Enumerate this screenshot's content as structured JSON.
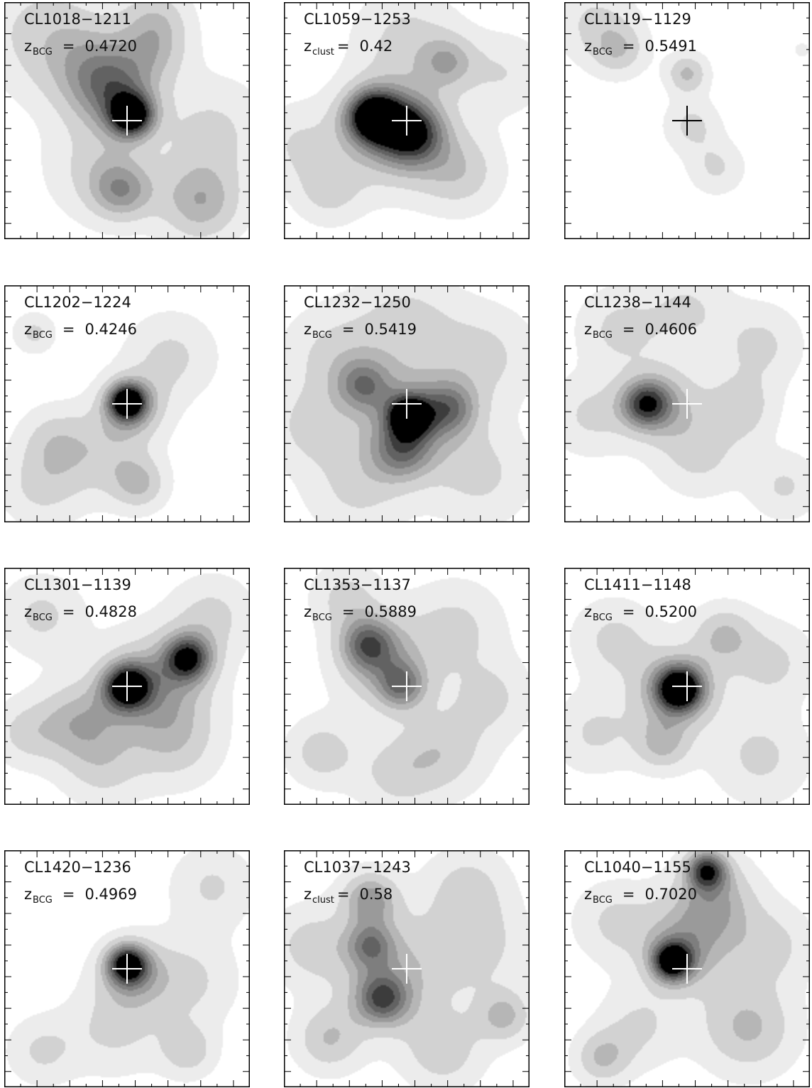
{
  "chart_data": [
    {
      "type": "contour",
      "title": "CL1018−1211",
      "z_label": "z",
      "z_sub": "BCG",
      "z_value": "0.4720",
      "marker_color": "#ffffff",
      "marker": [
        0.5,
        0.5
      ],
      "blobs": [
        {
          "x": 0.52,
          "y": 0.48,
          "s": 0.065,
          "a": 1.0
        },
        {
          "x": 0.45,
          "y": 0.37,
          "s": 0.12,
          "a": 0.55
        },
        {
          "x": 0.35,
          "y": 0.28,
          "s": 0.15,
          "a": 0.35
        },
        {
          "x": 0.15,
          "y": 0.12,
          "s": 0.18,
          "a": 0.3
        },
        {
          "x": 0.62,
          "y": 0.2,
          "s": 0.1,
          "a": 0.3
        },
        {
          "x": 0.62,
          "y": 0.06,
          "s": 0.1,
          "a": 0.3
        },
        {
          "x": 0.85,
          "y": 0.55,
          "s": 0.16,
          "a": 0.3
        },
        {
          "x": 0.48,
          "y": 0.8,
          "s": 0.09,
          "a": 0.5
        },
        {
          "x": 0.8,
          "y": 0.85,
          "s": 0.12,
          "a": 0.5
        },
        {
          "x": 0.38,
          "y": 0.7,
          "s": 0.15,
          "a": 0.3
        }
      ]
    },
    {
      "type": "contour",
      "title": "CL1059−1253",
      "z_label": "z",
      "z_sub": "clust",
      "z_value": "0.42",
      "marker_color": "#ffffff",
      "marker": [
        0.5,
        0.5
      ],
      "blobs": [
        {
          "x": 0.36,
          "y": 0.48,
          "s": 0.08,
          "a": 1.0
        },
        {
          "x": 0.52,
          "y": 0.55,
          "s": 0.09,
          "a": 0.7
        },
        {
          "x": 0.45,
          "y": 0.55,
          "s": 0.16,
          "a": 0.6
        },
        {
          "x": 0.72,
          "y": 0.72,
          "s": 0.12,
          "a": 0.35
        },
        {
          "x": 0.67,
          "y": 0.25,
          "s": 0.08,
          "a": 0.4
        },
        {
          "x": 0.18,
          "y": 0.8,
          "s": 0.1,
          "a": 0.3
        },
        {
          "x": 0.5,
          "y": 0.15,
          "s": 0.15,
          "a": 0.3
        },
        {
          "x": 0.9,
          "y": 0.3,
          "s": 0.12,
          "a": 0.25
        },
        {
          "x": 0.05,
          "y": 0.6,
          "s": 0.12,
          "a": 0.25
        }
      ]
    },
    {
      "type": "contour",
      "title": "CL1119−1129",
      "z_label": "z",
      "z_sub": "BCG",
      "z_value": "0.5491",
      "marker_color": "#000000",
      "marker": [
        0.5,
        0.5
      ],
      "blobs": [
        {
          "x": 0.5,
          "y": 0.3,
          "s": 0.06,
          "a": 0.45
        },
        {
          "x": 0.52,
          "y": 0.52,
          "s": 0.08,
          "a": 0.3
        },
        {
          "x": 0.22,
          "y": 0.2,
          "s": 0.08,
          "a": 0.35
        },
        {
          "x": 0.12,
          "y": 0.08,
          "s": 0.12,
          "a": 0.28
        },
        {
          "x": 0.62,
          "y": 0.7,
          "s": 0.08,
          "a": 0.28
        },
        {
          "x": 0.97,
          "y": 0.2,
          "s": 0.02,
          "a": 0.25
        }
      ]
    },
    {
      "type": "contour",
      "title": "CL1202−1224",
      "z_label": "z",
      "z_sub": "BCG",
      "z_value": "0.4246",
      "marker_color": "#ffffff",
      "marker": [
        0.5,
        0.5
      ],
      "blobs": [
        {
          "x": 0.5,
          "y": 0.49,
          "s": 0.055,
          "a": 1.0
        },
        {
          "x": 0.52,
          "y": 0.52,
          "s": 0.1,
          "a": 0.45
        },
        {
          "x": 0.4,
          "y": 0.72,
          "s": 0.13,
          "a": 0.3
        },
        {
          "x": 0.55,
          "y": 0.84,
          "s": 0.08,
          "a": 0.4
        },
        {
          "x": 0.68,
          "y": 0.3,
          "s": 0.13,
          "a": 0.3
        },
        {
          "x": 0.15,
          "y": 0.85,
          "s": 0.12,
          "a": 0.3
        },
        {
          "x": 0.12,
          "y": 0.2,
          "s": 0.06,
          "a": 0.3
        },
        {
          "x": 0.2,
          "y": 0.65,
          "s": 0.1,
          "a": 0.28
        }
      ]
    },
    {
      "type": "contour",
      "title": "CL1232−1250",
      "z_label": "z",
      "z_sub": "BCG",
      "z_value": "0.5419",
      "marker_color": "#ffffff",
      "marker": [
        0.5,
        0.5
      ],
      "blobs": [
        {
          "x": 0.51,
          "y": 0.55,
          "s": 0.06,
          "a": 0.9
        },
        {
          "x": 0.52,
          "y": 0.55,
          "s": 0.15,
          "a": 0.5
        },
        {
          "x": 0.32,
          "y": 0.42,
          "s": 0.08,
          "a": 0.5
        },
        {
          "x": 0.68,
          "y": 0.52,
          "s": 0.08,
          "a": 0.5
        },
        {
          "x": 0.48,
          "y": 0.7,
          "s": 0.09,
          "a": 0.5
        },
        {
          "x": 0.2,
          "y": 0.3,
          "s": 0.15,
          "a": 0.3
        },
        {
          "x": 0.82,
          "y": 0.3,
          "s": 0.15,
          "a": 0.3
        },
        {
          "x": 0.3,
          "y": 0.85,
          "s": 0.15,
          "a": 0.3
        },
        {
          "x": 0.8,
          "y": 0.8,
          "s": 0.15,
          "a": 0.3
        },
        {
          "x": 0.5,
          "y": 0.15,
          "s": 0.15,
          "a": 0.3
        },
        {
          "x": 0.1,
          "y": 0.6,
          "s": 0.12,
          "a": 0.28
        }
      ]
    },
    {
      "type": "contour",
      "title": "CL1238−1144",
      "z_label": "z",
      "z_sub": "BCG",
      "z_value": "0.4606",
      "marker_color": "#ffffff",
      "marker": [
        0.5,
        0.5
      ],
      "blobs": [
        {
          "x": 0.33,
          "y": 0.5,
          "s": 0.07,
          "a": 0.7
        },
        {
          "x": 0.4,
          "y": 0.5,
          "s": 0.12,
          "a": 0.45
        },
        {
          "x": 0.72,
          "y": 0.52,
          "s": 0.1,
          "a": 0.35
        },
        {
          "x": 0.22,
          "y": 0.18,
          "s": 0.12,
          "a": 0.3
        },
        {
          "x": 0.8,
          "y": 0.25,
          "s": 0.12,
          "a": 0.3
        },
        {
          "x": 0.55,
          "y": 0.72,
          "s": 0.12,
          "a": 0.3
        },
        {
          "x": 0.9,
          "y": 0.85,
          "s": 0.1,
          "a": 0.28
        },
        {
          "x": 0.1,
          "y": 0.55,
          "s": 0.12,
          "a": 0.28
        },
        {
          "x": 0.5,
          "y": 0.1,
          "s": 0.12,
          "a": 0.28
        }
      ]
    },
    {
      "type": "contour",
      "title": "CL1301−1139",
      "z_label": "z",
      "z_sub": "BCG",
      "z_value": "0.4828",
      "marker_color": "#ffffff",
      "marker": [
        0.5,
        0.5
      ],
      "blobs": [
        {
          "x": 0.5,
          "y": 0.5,
          "s": 0.07,
          "a": 0.95
        },
        {
          "x": 0.75,
          "y": 0.38,
          "s": 0.07,
          "a": 0.85
        },
        {
          "x": 0.62,
          "y": 0.5,
          "s": 0.16,
          "a": 0.55
        },
        {
          "x": 0.3,
          "y": 0.65,
          "s": 0.12,
          "a": 0.45
        },
        {
          "x": 0.15,
          "y": 0.2,
          "s": 0.12,
          "a": 0.3
        },
        {
          "x": 0.7,
          "y": 0.75,
          "s": 0.13,
          "a": 0.3
        },
        {
          "x": 0.85,
          "y": 0.2,
          "s": 0.12,
          "a": 0.3
        },
        {
          "x": 0.4,
          "y": 0.85,
          "s": 0.12,
          "a": 0.28
        },
        {
          "x": 0.08,
          "y": 0.7,
          "s": 0.1,
          "a": 0.28
        }
      ]
    },
    {
      "type": "contour",
      "title": "CL1353−1137",
      "z_label": "z",
      "z_sub": "BCG",
      "z_value": "0.5889",
      "marker_color": "#ffffff",
      "marker": [
        0.5,
        0.5
      ],
      "blobs": [
        {
          "x": 0.34,
          "y": 0.32,
          "s": 0.08,
          "a": 0.6
        },
        {
          "x": 0.48,
          "y": 0.5,
          "s": 0.07,
          "a": 0.55
        },
        {
          "x": 0.4,
          "y": 0.4,
          "s": 0.14,
          "a": 0.45
        },
        {
          "x": 0.15,
          "y": 0.78,
          "s": 0.1,
          "a": 0.35
        },
        {
          "x": 0.65,
          "y": 0.78,
          "s": 0.13,
          "a": 0.35
        },
        {
          "x": 0.7,
          "y": 0.25,
          "s": 0.14,
          "a": 0.3
        },
        {
          "x": 0.85,
          "y": 0.55,
          "s": 0.12,
          "a": 0.28
        },
        {
          "x": 0.25,
          "y": 0.12,
          "s": 0.1,
          "a": 0.3
        },
        {
          "x": 0.45,
          "y": 0.88,
          "s": 0.12,
          "a": 0.28
        }
      ]
    },
    {
      "type": "contour",
      "title": "CL1411−1148",
      "z_label": "z",
      "z_sub": "BCG",
      "z_value": "0.5200",
      "marker_color": "#ffffff",
      "marker": [
        0.5,
        0.5
      ],
      "blobs": [
        {
          "x": 0.47,
          "y": 0.51,
          "s": 0.07,
          "a": 1.0
        },
        {
          "x": 0.45,
          "y": 0.52,
          "s": 0.13,
          "a": 0.5
        },
        {
          "x": 0.65,
          "y": 0.28,
          "s": 0.09,
          "a": 0.4
        },
        {
          "x": 0.4,
          "y": 0.75,
          "s": 0.08,
          "a": 0.4
        },
        {
          "x": 0.2,
          "y": 0.3,
          "s": 0.12,
          "a": 0.3
        },
        {
          "x": 0.85,
          "y": 0.4,
          "s": 0.12,
          "a": 0.3
        },
        {
          "x": 0.8,
          "y": 0.8,
          "s": 0.14,
          "a": 0.3
        },
        {
          "x": 0.12,
          "y": 0.7,
          "s": 0.12,
          "a": 0.28
        }
      ]
    },
    {
      "type": "contour",
      "title": "CL1420−1236",
      "z_label": "z",
      "z_sub": "BCG",
      "z_value": "0.4969",
      "marker_color": "#ffffff",
      "marker": [
        0.5,
        0.5
      ],
      "blobs": [
        {
          "x": 0.5,
          "y": 0.48,
          "s": 0.06,
          "a": 0.9
        },
        {
          "x": 0.52,
          "y": 0.52,
          "s": 0.1,
          "a": 0.4
        },
        {
          "x": 0.75,
          "y": 0.55,
          "s": 0.14,
          "a": 0.3
        },
        {
          "x": 0.45,
          "y": 0.75,
          "s": 0.14,
          "a": 0.3
        },
        {
          "x": 0.75,
          "y": 0.85,
          "s": 0.08,
          "a": 0.35
        },
        {
          "x": 0.85,
          "y": 0.15,
          "s": 0.12,
          "a": 0.28
        },
        {
          "x": 0.15,
          "y": 0.85,
          "s": 0.1,
          "a": 0.28
        }
      ]
    },
    {
      "type": "contour",
      "title": "CL1037−1243",
      "z_label": "z",
      "z_sub": "clust",
      "z_value": "0.58",
      "marker_color": "#ffffff",
      "marker": [
        0.5,
        0.5
      ],
      "blobs": [
        {
          "x": 0.4,
          "y": 0.63,
          "s": 0.08,
          "a": 0.7
        },
        {
          "x": 0.35,
          "y": 0.2,
          "s": 0.08,
          "a": 0.55
        },
        {
          "x": 0.35,
          "y": 0.4,
          "s": 0.07,
          "a": 0.5
        },
        {
          "x": 0.45,
          "y": 0.5,
          "s": 0.18,
          "a": 0.4
        },
        {
          "x": 0.18,
          "y": 0.8,
          "s": 0.1,
          "a": 0.4
        },
        {
          "x": 0.9,
          "y": 0.7,
          "s": 0.08,
          "a": 0.45
        },
        {
          "x": 0.8,
          "y": 0.4,
          "s": 0.14,
          "a": 0.3
        },
        {
          "x": 0.65,
          "y": 0.85,
          "s": 0.12,
          "a": 0.35
        },
        {
          "x": 0.1,
          "y": 0.4,
          "s": 0.12,
          "a": 0.3
        },
        {
          "x": 0.75,
          "y": 0.15,
          "s": 0.12,
          "a": 0.3
        }
      ]
    },
    {
      "type": "contour",
      "title": "CL1040−1155",
      "z_label": "z",
      "z_sub": "BCG",
      "z_value": "0.7020",
      "marker_color": "#ffffff",
      "marker": [
        0.5,
        0.5
      ],
      "blobs": [
        {
          "x": 0.44,
          "y": 0.47,
          "s": 0.06,
          "a": 1.0
        },
        {
          "x": 0.58,
          "y": 0.08,
          "s": 0.06,
          "a": 0.85
        },
        {
          "x": 0.5,
          "y": 0.4,
          "s": 0.14,
          "a": 0.5
        },
        {
          "x": 0.62,
          "y": 0.2,
          "s": 0.12,
          "a": 0.45
        },
        {
          "x": 0.75,
          "y": 0.75,
          "s": 0.14,
          "a": 0.45
        },
        {
          "x": 0.15,
          "y": 0.88,
          "s": 0.08,
          "a": 0.4
        },
        {
          "x": 0.85,
          "y": 0.4,
          "s": 0.12,
          "a": 0.3
        },
        {
          "x": 0.2,
          "y": 0.3,
          "s": 0.12,
          "a": 0.28
        },
        {
          "x": 0.3,
          "y": 0.75,
          "s": 0.12,
          "a": 0.28
        }
      ]
    }
  ]
}
